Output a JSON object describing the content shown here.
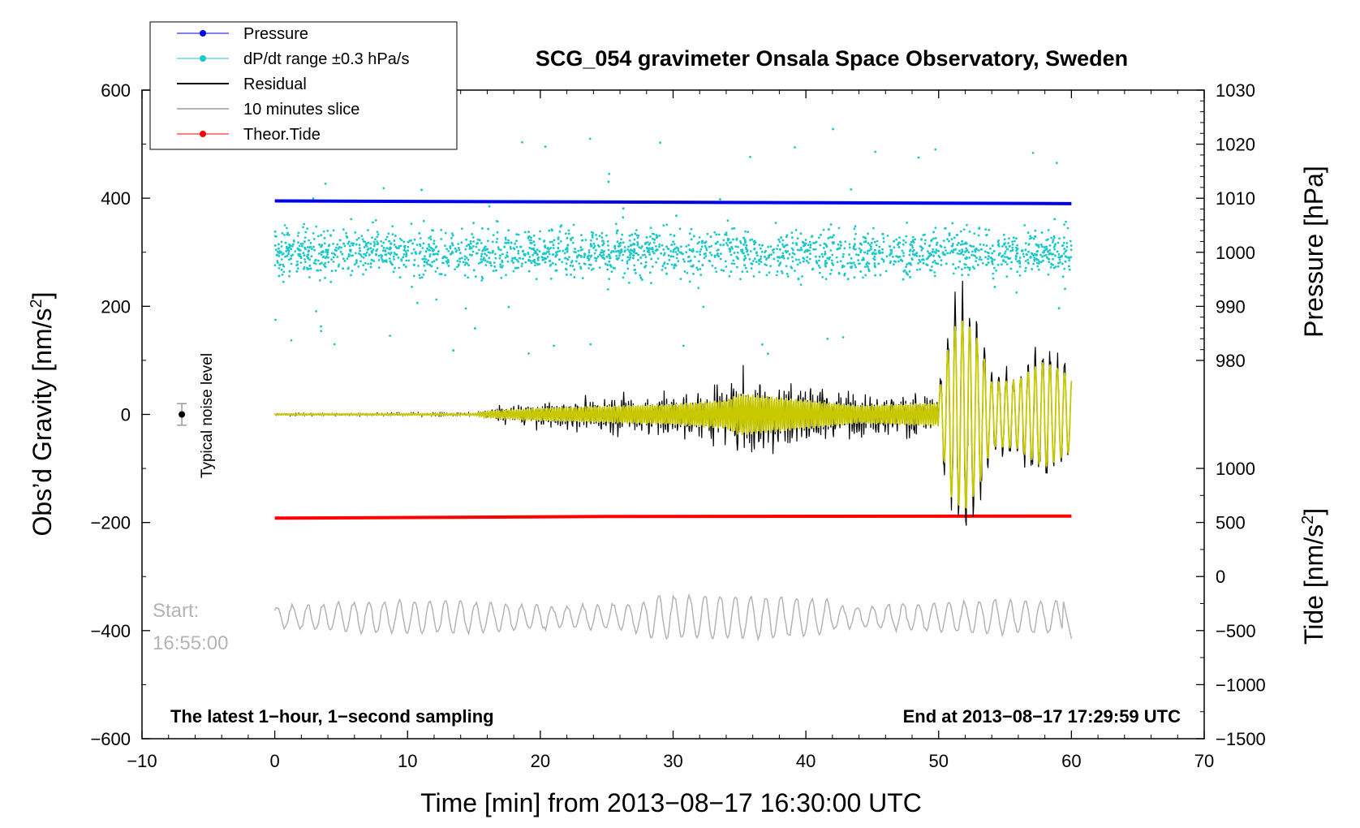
{
  "chart_data": {
    "type": "line",
    "title": "SCG_054 gravimeter Onsala Space Observatory, Sweden",
    "xlabel": "Time [min] from 2013−08−17 16:30:00 UTC",
    "ylabel_left": "Obs’d Gravity [nm/s",
    "ylabel_left_sup": "2",
    "ylabel_left_close": "]",
    "ylabel_right_pressure": "Pressure [hPa]",
    "ylabel_right_tide": "Tide [nm/s",
    "ylabel_right_tide_sup": "2",
    "ylabel_right_tide_close": "]",
    "xlim": [
      -10,
      70
    ],
    "ylim": [
      -600,
      600
    ],
    "x_ticks": [
      "−10",
      "0",
      "10",
      "20",
      "30",
      "40",
      "50",
      "60",
      "70"
    ],
    "y_ticks_left": [
      "600",
      "400",
      "200",
      "0",
      "−200",
      "−400",
      "−600"
    ],
    "pressure_ticks": [
      "1030",
      "1020",
      "1010",
      "1000",
      "990",
      "980"
    ],
    "pressure_range": [
      980,
      1030
    ],
    "tide_ticks": [
      "1000",
      "500",
      "0",
      "−500",
      "−1000",
      "−1500"
    ],
    "tide_range": [
      -1500,
      1000
    ],
    "legend": [
      {
        "label": "Pressure",
        "color": "#0000e6",
        "style": "line-dot"
      },
      {
        "label": "dP/dt range ±0.3 hPa/s",
        "color": "#1ec8c8",
        "style": "line-dot"
      },
      {
        "label": "Residual",
        "color": "#000000",
        "style": "line"
      },
      {
        "label": "10 minutes slice",
        "color": "#b4b4b4",
        "style": "line"
      },
      {
        "label": "Theor.Tide",
        "color": "#ff0000",
        "style": "line-dot"
      }
    ],
    "series": [
      {
        "name": "Pressure",
        "color": "#0000e6",
        "x": [
          0,
          60
        ],
        "values": [
          395,
          390
        ]
      },
      {
        "name": "dP/dt range ±0.3 hPa/s",
        "color": "#1ec8c8",
        "center": 300,
        "spread": 30,
        "x": [
          0,
          60
        ]
      },
      {
        "name": "Theor.Tide",
        "color": "#ff0000",
        "x": [
          0,
          25,
          60
        ],
        "values": [
          -192,
          -189,
          -188
        ]
      },
      {
        "name": "Residual",
        "color": "#000000",
        "x": [
          0,
          60
        ],
        "envelope_points": [
          [
            0,
            2
          ],
          [
            15,
            3
          ],
          [
            16,
            12
          ],
          [
            20,
            25
          ],
          [
            30,
            40
          ],
          [
            34,
            55
          ],
          [
            35,
            80
          ],
          [
            44,
            35
          ],
          [
            50,
            45
          ],
          [
            51,
            185
          ],
          [
            52,
            210
          ],
          [
            53,
            160
          ],
          [
            54,
            70
          ],
          [
            56,
            75
          ],
          [
            57,
            100
          ],
          [
            58,
            115
          ],
          [
            59,
            100
          ],
          [
            60,
            80
          ]
        ]
      },
      {
        "name": "10 minutes slice",
        "color": "#b4b4b4",
        "x": [
          0,
          60
        ],
        "baseline": -375
      }
    ],
    "noise_marker": {
      "x": -7,
      "y": 0,
      "err": 20,
      "label": "Typical noise level"
    },
    "start_label": "Start:",
    "start_time": "16:55:00",
    "note_left": "The latest 1−hour, 1−second sampling",
    "note_right": "End at 2013−08−17 17:29:59 UTC",
    "colors": {
      "overlay": "#c8c800",
      "frame": "#000000"
    }
  }
}
